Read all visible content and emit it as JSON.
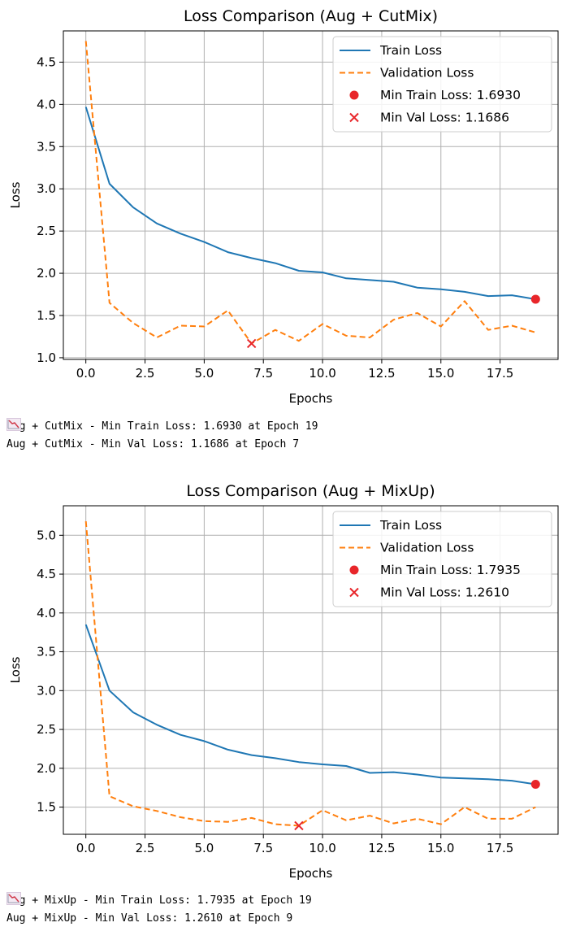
{
  "chart_data": [
    {
      "type": "line",
      "title": "Loss Comparison (Aug + CutMix)",
      "xlabel": "Epochs",
      "ylabel": "Loss",
      "xlim": [
        -0.95,
        19.95
      ],
      "ylim": [
        0.98,
        4.87
      ],
      "xticks": [
        0.0,
        2.5,
        5.0,
        7.5,
        10.0,
        12.5,
        15.0,
        17.5
      ],
      "xtick_labels": [
        "0.0",
        "2.5",
        "5.0",
        "7.5",
        "10.0",
        "12.5",
        "15.0",
        "17.5"
      ],
      "yticks": [
        1.0,
        1.5,
        2.0,
        2.5,
        3.0,
        3.5,
        4.0,
        4.5
      ],
      "ytick_labels": [
        "1.0",
        "1.5",
        "2.0",
        "2.5",
        "3.0",
        "3.5",
        "4.0",
        "4.5"
      ],
      "grid": true,
      "legend_position": "top-right",
      "x": [
        0,
        1,
        2,
        3,
        4,
        5,
        6,
        7,
        8,
        9,
        10,
        11,
        12,
        13,
        14,
        15,
        16,
        17,
        18,
        19
      ],
      "series": [
        {
          "name": "Train Loss",
          "style": "solid",
          "color": "#1f77b4",
          "values": [
            3.97,
            3.06,
            2.78,
            2.59,
            2.47,
            2.37,
            2.25,
            2.18,
            2.12,
            2.03,
            2.01,
            1.94,
            1.92,
            1.9,
            1.83,
            1.81,
            1.78,
            1.73,
            1.74,
            1.693
          ]
        },
        {
          "name": "Validation Loss",
          "style": "dashed",
          "color": "#ff7f0e",
          "values": [
            4.75,
            1.65,
            1.41,
            1.24,
            1.38,
            1.37,
            1.56,
            1.1686,
            1.33,
            1.2,
            1.4,
            1.26,
            1.24,
            1.45,
            1.53,
            1.37,
            1.67,
            1.33,
            1.38,
            1.3
          ]
        }
      ],
      "markers": [
        {
          "name": "Min Train Loss: 1.6930",
          "shape": "circle",
          "color": "#e8262a",
          "x": 19,
          "y": 1.693
        },
        {
          "name": "Min Val Loss: 1.1686",
          "shape": "x",
          "color": "#e8262a",
          "x": 7,
          "y": 1.1686
        }
      ]
    },
    {
      "type": "line",
      "title": "Loss Comparison (Aug + MixUp)",
      "xlabel": "Epochs",
      "ylabel": "Loss",
      "xlim": [
        -0.95,
        19.95
      ],
      "ylim": [
        1.15,
        5.38
      ],
      "xticks": [
        0.0,
        2.5,
        5.0,
        7.5,
        10.0,
        12.5,
        15.0,
        17.5
      ],
      "xtick_labels": [
        "0.0",
        "2.5",
        "5.0",
        "7.5",
        "10.0",
        "12.5",
        "15.0",
        "17.5"
      ],
      "yticks": [
        1.5,
        2.0,
        2.5,
        3.0,
        3.5,
        4.0,
        4.5,
        5.0
      ],
      "ytick_labels": [
        "1.5",
        "2.0",
        "2.5",
        "3.0",
        "3.5",
        "4.0",
        "4.5",
        "5.0"
      ],
      "grid": true,
      "legend_position": "top-right",
      "x": [
        0,
        1,
        2,
        3,
        4,
        5,
        6,
        7,
        8,
        9,
        10,
        11,
        12,
        13,
        14,
        15,
        16,
        17,
        18,
        19
      ],
      "series": [
        {
          "name": "Train Loss",
          "style": "solid",
          "color": "#1f77b4",
          "values": [
            3.85,
            3.0,
            2.72,
            2.56,
            2.43,
            2.35,
            2.24,
            2.17,
            2.13,
            2.08,
            2.05,
            2.03,
            1.94,
            1.95,
            1.92,
            1.88,
            1.87,
            1.86,
            1.84,
            1.7935
          ]
        },
        {
          "name": "Validation Loss",
          "style": "dashed",
          "color": "#ff7f0e",
          "values": [
            5.18,
            1.64,
            1.51,
            1.45,
            1.37,
            1.32,
            1.31,
            1.36,
            1.28,
            1.261,
            1.46,
            1.33,
            1.39,
            1.29,
            1.35,
            1.28,
            1.5,
            1.35,
            1.35,
            1.5
          ]
        }
      ],
      "markers": [
        {
          "name": "Min Train Loss: 1.7935",
          "shape": "circle",
          "color": "#e8262a",
          "x": 19,
          "y": 1.7935
        },
        {
          "name": "Min Val Loss: 1.2610",
          "shape": "x",
          "color": "#e8262a",
          "x": 9,
          "y": 1.261
        }
      ]
    }
  ],
  "outputs": [
    {
      "lines": [
        "Aug + CutMix - Min Train Loss: 1.6930 at Epoch 19",
        "Aug + CutMix - Min Val Loss: 1.1686 at Epoch 7"
      ]
    },
    {
      "lines": [
        "Aug + MixUp - Min Train Loss: 1.7935 at Epoch 19",
        "Aug + MixUp - Min Val Loss: 1.2610 at Epoch 9"
      ]
    }
  ],
  "icons": {
    "output_line_icon": "chart-decreasing-icon"
  }
}
